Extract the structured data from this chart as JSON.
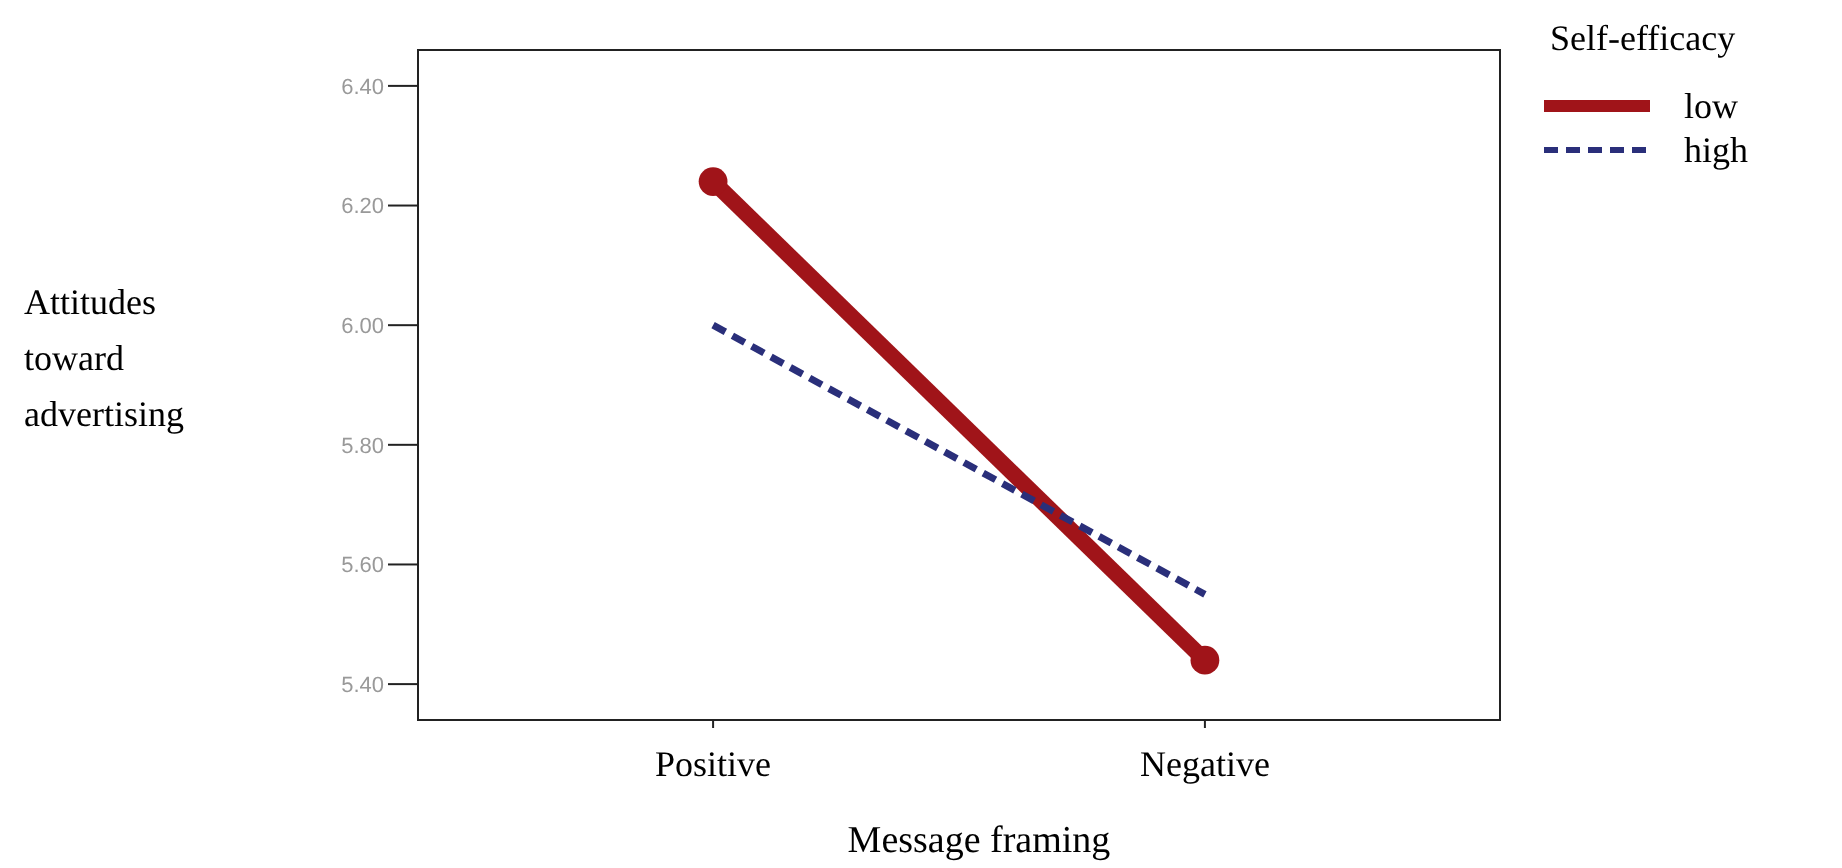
{
  "chart_data": {
    "type": "line",
    "xlabel": "Message framing",
    "ylabel": "Attitudes toward advertising",
    "legend_title": "Self-efficacy",
    "legend": "top right",
    "categories": [
      "Positive",
      "Negative"
    ],
    "ylim": [
      5.34,
      6.46
    ],
    "yticks": [
      {
        "value": 5.4,
        "label": "5.40"
      },
      {
        "value": 5.6,
        "label": "5.60"
      },
      {
        "value": 5.8,
        "label": "5.80"
      },
      {
        "value": 6.0,
        "label": "6.00"
      },
      {
        "value": 6.2,
        "label": "6.20"
      },
      {
        "value": 6.4,
        "label": "6.40"
      }
    ],
    "series": [
      {
        "name": "low",
        "color": "#a01419",
        "values": [
          6.24,
          5.44
        ],
        "line_style": "solid",
        "marker": "circle"
      },
      {
        "name": "high",
        "color": "#2a2f7a",
        "values": [
          6.0,
          5.55
        ],
        "line_style": "dashed",
        "marker": "none"
      }
    ]
  }
}
